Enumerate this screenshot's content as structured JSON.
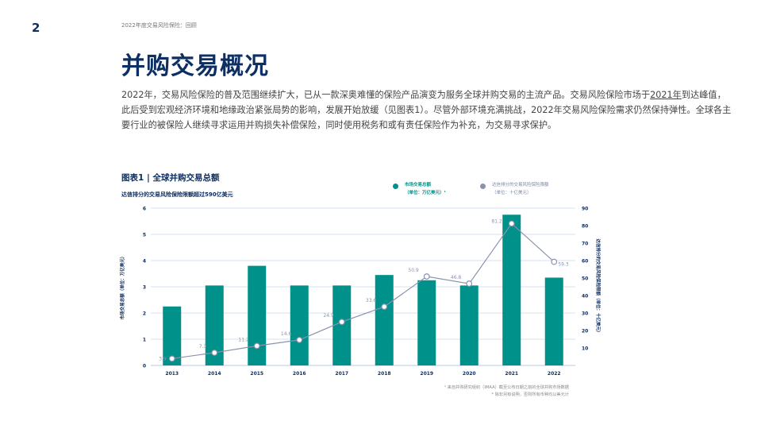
{
  "page": {
    "number": "2",
    "running_header": "2022年度交易风险保险：回顾",
    "title": "并购交易概况",
    "intro_before": "2022年，交易风险保险的普及范围继续扩大，已从一款深奥难懂的保险产品演变为服务全球并购交易的主流产品。交易风险保险市场于",
    "intro_link": "2021年",
    "intro_after": "到达峰值，此后受到宏观经济环境和地缘政治紧张局势的影响，发展开始放缓（见图表1）。尽管外部环境充满挑战，2022年交易风险保险需求仍然保持弹性。全球各主要行业的被保险人继续寻求运用并购损失补偿保险，同时使用税务和或有责任保险作为补充，为交易寻求保护。",
    "footnote1": "¹ 来自并购研究组织（IMAA）截至公布日期之前的全球并购市场数据",
    "footnote2": "* 除非另有说明，否则所有币种均以美元计"
  },
  "chart_header": {
    "title": "图表1 | 全球并购交易总额",
    "subtitle": "达信排分的交易风险保险限额超过590亿美元",
    "legend_bar_line1": "市场交易总额",
    "legend_bar_line2": "（单位：万亿美元）¹",
    "legend_line_line1": "达信排分的交易风险保险限额",
    "legend_line_line2": "（单位：十亿美元）"
  },
  "chart_data": {
    "type": "bar",
    "categories": [
      "2013",
      "2014",
      "2015",
      "2016",
      "2017",
      "2018",
      "2019",
      "2020",
      "2021",
      "2022"
    ],
    "series": [
      {
        "name": "市场交易总额（单位：万亿美元）",
        "type": "bar",
        "axis": "left",
        "values": [
          2.25,
          3.05,
          3.8,
          3.05,
          3.05,
          3.45,
          3.25,
          3.05,
          5.75,
          3.35
        ]
      },
      {
        "name": "达信排分的交易风险保险限额（单位：十亿美元）",
        "type": "line",
        "axis": "right",
        "values": [
          3.9,
          7.3,
          11.2,
          14.6,
          24.9,
          33.6,
          50.9,
          46.8,
          81.2,
          59.3
        ]
      }
    ],
    "ylabel_left": "市场交易总额（单位：万亿美元）",
    "ylabel_right": "达信排分的交易风险保险限额（单位：十亿美元）",
    "ylim_left": [
      0,
      6
    ],
    "ylim_right": [
      0,
      90
    ],
    "yticks_left": [
      "0",
      "1",
      "2",
      "3",
      "4",
      "5",
      "6"
    ],
    "yticks_right": [
      "10",
      "20",
      "30",
      "40",
      "50",
      "60",
      "70",
      "80",
      "90"
    ],
    "grid": true,
    "colors": {
      "bar": "#00918a",
      "line": "#8a93ad",
      "grid": "#c9d8ee",
      "axis_text": "#0d2f63"
    }
  }
}
